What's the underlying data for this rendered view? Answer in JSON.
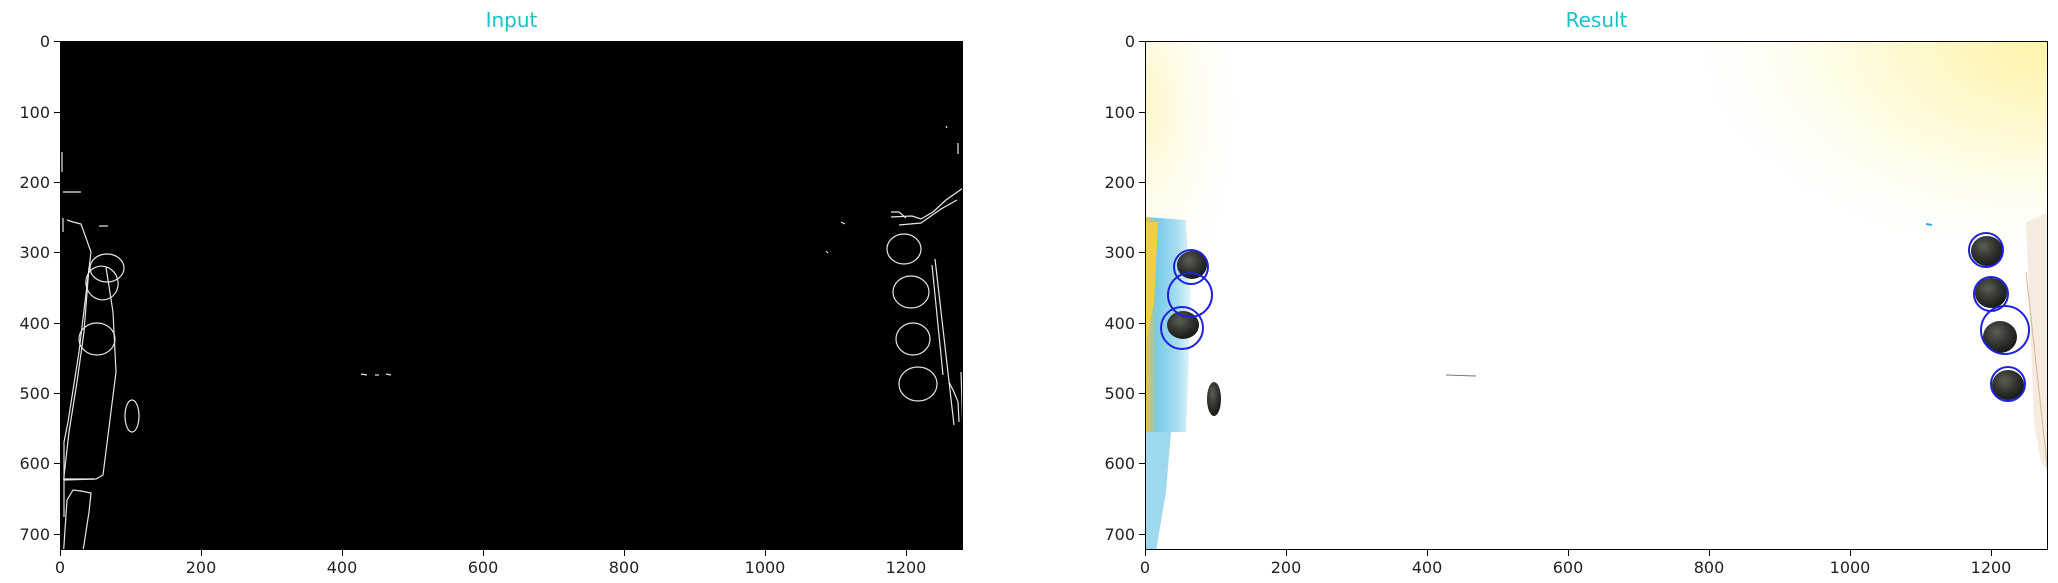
{
  "panels": [
    {
      "title": "Input",
      "yticks": [
        "0",
        "100",
        "200",
        "300",
        "400",
        "500",
        "600",
        "700"
      ],
      "xticks": [
        "0",
        "200",
        "400",
        "600",
        "800",
        "1000",
        "1200"
      ]
    },
    {
      "title": "Result",
      "yticks": [
        "0",
        "100",
        "200",
        "300",
        "400",
        "500",
        "600",
        "700"
      ],
      "xticks": [
        "0",
        "200",
        "400",
        "600",
        "800",
        "1000",
        "1200"
      ]
    }
  ],
  "colors": {
    "title": "#17c2c8",
    "edge_bg": "#000000",
    "edge_line": "#e6e6e6",
    "circle": "#1f22d8"
  }
}
